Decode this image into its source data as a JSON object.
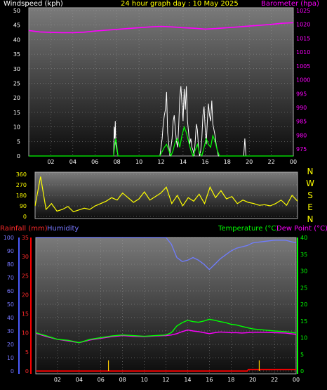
{
  "header": {
    "windspeed_label": "Windspeed (kph)",
    "title": "24 hour graph day : 10 May 2025",
    "barometer_label": "Barometer (hpa)"
  },
  "compass": {
    "n": "N",
    "w": "W",
    "s": "S",
    "e": "E",
    "n2": "N"
  },
  "bottom_legend": {
    "rainfall": "Rainfall (mm)",
    "humidity": "Humidity",
    "temperature": "Temperature (°C)",
    "dewpoint": "Dew Point (°C)"
  },
  "colors": {
    "barometer": "#ff00ff",
    "gust": "#ffffff",
    "wind": "#00ff00",
    "direction": "#ffff00",
    "humidity": "#6f7cff",
    "temperature": "#00ff00",
    "dewpoint": "#ff00ff",
    "rain": "#ff0000",
    "rain_rate": "#ffcc00"
  },
  "chart_data": [
    {
      "type": "line",
      "x_ticks": [
        "02",
        "04",
        "06",
        "08",
        "10",
        "12",
        "14",
        "16",
        "18",
        "20",
        "22",
        "00"
      ],
      "left_axis": {
        "label": "Windspeed (kph)",
        "ticks": [
          0,
          5,
          10,
          15,
          20,
          25,
          30,
          35,
          40,
          45,
          50
        ],
        "range": [
          0,
          50
        ]
      },
      "right_axis": {
        "label": "Barometer (hpa)",
        "ticks": [
          975,
          980,
          985,
          990,
          995,
          1000,
          1005,
          1010,
          1015,
          1020,
          1025
        ],
        "range": [
          972.5,
          1025
        ]
      },
      "series": [
        {
          "name": "Barometer (hpa)",
          "axis": "right",
          "x": [
            0,
            1,
            2,
            3,
            4,
            5,
            6,
            7,
            8,
            9,
            10,
            11,
            12,
            13,
            14,
            15,
            16,
            17,
            18,
            19,
            20,
            21,
            22,
            23,
            24
          ],
          "y": [
            1017.8,
            1017.3,
            1017.1,
            1017.0,
            1017.0,
            1017.2,
            1017.6,
            1017.9,
            1018.2,
            1018.5,
            1018.8,
            1019.1,
            1019.3,
            1019.1,
            1018.8,
            1018.6,
            1018.3,
            1018.5,
            1018.8,
            1019.1,
            1019.4,
            1019.7,
            1020.0,
            1020.4,
            1020.6
          ]
        },
        {
          "name": "Gust",
          "axis": "left",
          "x": [
            0,
            7.7,
            7.75,
            7.8,
            7.85,
            7.9,
            8.0,
            8.1,
            11.9,
            12.1,
            12.2,
            12.3,
            12.4,
            12.5,
            12.6,
            12.7,
            12.8,
            12.9,
            13.0,
            13.1,
            13.2,
            13.3,
            13.4,
            13.5,
            13.6,
            13.7,
            13.8,
            13.9,
            14.0,
            14.1,
            14.2,
            14.3,
            14.4,
            14.5,
            14.6,
            14.7,
            14.8,
            14.9,
            15.0,
            15.1,
            15.2,
            15.3,
            15.4,
            15.5,
            15.6,
            15.7,
            15.8,
            15.9,
            16.0,
            16.1,
            16.2,
            16.3,
            16.4,
            16.5,
            16.6,
            16.7,
            16.8,
            16.9,
            17.0,
            17.1,
            17.2,
            17.3,
            17.4,
            17.5,
            17.6,
            19.5,
            19.6,
            19.7,
            19.8,
            24
          ],
          "y": [
            0,
            0,
            10,
            6,
            12,
            4,
            2,
            0,
            0,
            6,
            11,
            14,
            16,
            22,
            8,
            4,
            0,
            3,
            6,
            12,
            14,
            9,
            5,
            3,
            10,
            20,
            24,
            18,
            12,
            23,
            16,
            24,
            12,
            8,
            4,
            6,
            3,
            2,
            0,
            5,
            11,
            9,
            3,
            0,
            2,
            6,
            14,
            17,
            10,
            4,
            12,
            18,
            14,
            12,
            19,
            11,
            9,
            7,
            4,
            2,
            0,
            0,
            0,
            0,
            0,
            0,
            6,
            0,
            0,
            0
          ]
        },
        {
          "name": "Windspeed (kph)",
          "axis": "left",
          "x": [
            0,
            7.7,
            7.8,
            7.9,
            8.0,
            8.1,
            11.9,
            12.3,
            12.5,
            12.7,
            12.9,
            13.1,
            13.3,
            13.5,
            13.7,
            13.9,
            14.1,
            14.3,
            14.5,
            14.7,
            14.9,
            15.1,
            15.3,
            15.5,
            15.7,
            15.9,
            16.1,
            16.3,
            16.5,
            16.7,
            16.9,
            17.1,
            17.3,
            17.5,
            24
          ],
          "y": [
            0,
            0,
            4,
            6,
            3,
            0,
            0,
            3,
            4,
            2,
            0,
            2,
            5,
            6,
            3,
            7,
            10,
            8,
            5,
            2,
            0,
            2,
            4,
            1,
            0,
            3,
            6,
            4,
            3,
            7,
            5,
            2,
            0,
            0,
            0
          ]
        }
      ]
    },
    {
      "type": "line",
      "axis": {
        "ticks": [
          0,
          90,
          180,
          270,
          360
        ],
        "range": [
          0,
          360
        ]
      },
      "series": [
        {
          "name": "Wind direction",
          "x": [
            0,
            0.5,
            1,
            1.5,
            2,
            2.5,
            3,
            3.5,
            4,
            4.5,
            5,
            5.5,
            6,
            6.5,
            7,
            7.5,
            8,
            8.5,
            9,
            9.5,
            10,
            10.5,
            11,
            11.5,
            12,
            12.5,
            13,
            13.5,
            14,
            14.5,
            15,
            15.5,
            16,
            16.5,
            17,
            17.5,
            18,
            18.5,
            19,
            19.5,
            20,
            20.5,
            21,
            21.5,
            22,
            22.5,
            23,
            23.5,
            24
          ],
          "y": [
            90,
            340,
            60,
            110,
            45,
            60,
            85,
            40,
            55,
            70,
            60,
            90,
            110,
            130,
            160,
            140,
            200,
            160,
            120,
            150,
            210,
            140,
            170,
            200,
            250,
            110,
            180,
            90,
            160,
            130,
            190,
            110,
            250,
            160,
            220,
            150,
            170,
            110,
            140,
            120,
            110,
            95,
            100,
            90,
            110,
            140,
            95,
            180,
            130
          ]
        }
      ]
    },
    {
      "type": "line",
      "x_ticks": [
        "02",
        "04",
        "06",
        "08",
        "10",
        "12",
        "14",
        "16",
        "18",
        "20",
        "22",
        "00"
      ],
      "left_axis_rain": {
        "label": "Rainfall (mm)",
        "ticks": [
          0,
          5,
          10,
          15,
          20,
          25,
          30,
          35
        ],
        "range": [
          0,
          35
        ]
      },
      "left_axis_humidity": {
        "label": "Humidity",
        "ticks": [
          0,
          10,
          20,
          30,
          40,
          50,
          60,
          70,
          80,
          90,
          100
        ],
        "range": [
          0,
          100
        ]
      },
      "right_axis": {
        "label": "Temperature (°C)",
        "ticks": [
          0,
          5,
          10,
          15,
          20,
          25,
          30,
          35,
          40
        ],
        "range": [
          0,
          40
        ]
      },
      "series": [
        {
          "name": "Humidity",
          "axis": "humidity",
          "x": [
            0,
            1,
            2,
            3,
            4,
            5,
            6,
            7,
            8,
            9,
            10,
            11,
            12,
            12.5,
            13,
            13.5,
            14,
            14.5,
            15,
            15.5,
            16,
            16.5,
            17,
            17.5,
            18,
            18.5,
            19,
            19.5,
            20,
            21,
            22,
            23,
            23.5,
            24
          ],
          "y": [
            100,
            100,
            100,
            100,
            100,
            100,
            100,
            100,
            100,
            100,
            100,
            100,
            100,
            95,
            85,
            82,
            83,
            85,
            83,
            80,
            76,
            80,
            84,
            87,
            90,
            92,
            93,
            94,
            96,
            97,
            98,
            98,
            97,
            96
          ]
        },
        {
          "name": "Temperature (°C)",
          "axis": "temp",
          "x": [
            0,
            1,
            2,
            3,
            4,
            5,
            6,
            7,
            8,
            9,
            10,
            11,
            12,
            12.5,
            13,
            13.5,
            14,
            14.5,
            15,
            15.5,
            16,
            16.5,
            17,
            17.5,
            18,
            18.5,
            19,
            19.5,
            20,
            21,
            22,
            23,
            24
          ],
          "y": [
            11.5,
            10.5,
            9.5,
            9.2,
            8.5,
            9.5,
            10,
            10.5,
            10.8,
            10.6,
            10.4,
            10.6,
            10.8,
            11.5,
            13.5,
            14.5,
            15.2,
            14.8,
            14.6,
            15,
            15.5,
            15.2,
            14.8,
            14.5,
            14.0,
            13.8,
            13.4,
            13.0,
            12.6,
            12.3,
            12.0,
            11.8,
            11.4
          ]
        },
        {
          "name": "Dew Point (°C)",
          "axis": "temp",
          "x": [
            0,
            1,
            2,
            3,
            4,
            5,
            6,
            7,
            8,
            9,
            10,
            11,
            12,
            12.5,
            13,
            13.5,
            14,
            14.5,
            15,
            15.5,
            16,
            16.5,
            17,
            17.5,
            18,
            18.5,
            19,
            19.5,
            20,
            21,
            22,
            23,
            24
          ],
          "y": [
            11.3,
            10.3,
            9.5,
            9.0,
            8.5,
            9.3,
            9.8,
            10.3,
            10.6,
            10.4,
            10.3,
            10.5,
            10.6,
            10.8,
            11.2,
            11.8,
            12.3,
            12.0,
            11.8,
            11.5,
            11.2,
            11.5,
            11.7,
            11.6,
            11.5,
            11.5,
            11.4,
            11.5,
            11.6,
            11.6,
            11.5,
            11.4,
            11.0
          ]
        },
        {
          "name": "Rainfall (mm)",
          "axis": "rain",
          "x": [
            0,
            19.5,
            19.6,
            24
          ],
          "y": [
            0,
            0,
            0.4,
            0.4
          ]
        },
        {
          "name": "Rain rate",
          "axis": "rain",
          "bars": [
            {
              "x": 6.7,
              "y": 2.8
            },
            {
              "x": 20.6,
              "y": 2.8
            }
          ]
        }
      ]
    }
  ]
}
